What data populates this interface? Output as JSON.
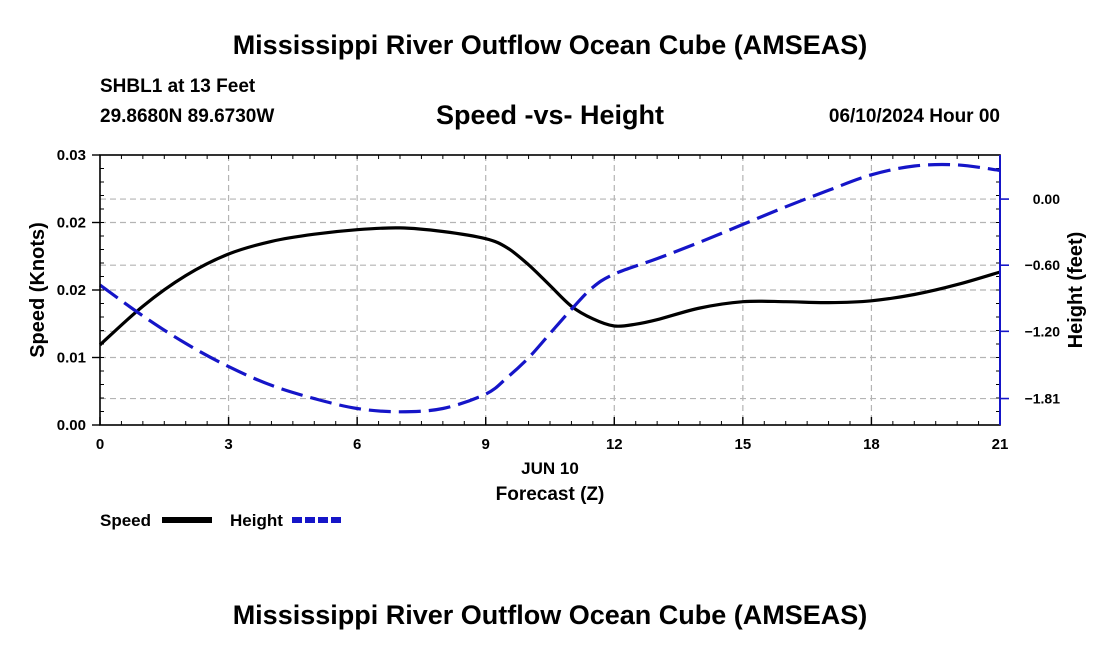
{
  "page": {
    "main_title": "Mississippi River Outflow Ocean Cube (AMSEAS)",
    "station": "SHBL1 at 13 Feet",
    "coords": "29.8680N  89.6730W",
    "chart_title": "Speed -vs- Height",
    "datetime": "06/10/2024 Hour 00",
    "footer_title": "Mississippi River Outflow Ocean Cube (AMSEAS)"
  },
  "chart_data": {
    "type": "line",
    "title": "Speed -vs- Height",
    "xlabel": "Forecast (Z)",
    "x_date_label": "JUN 10",
    "ylabel_left": "Speed (Knots)",
    "ylabel_right": "Height (feet)",
    "xlim": [
      0,
      21
    ],
    "x_ticks": [
      0,
      3,
      6,
      9,
      12,
      15,
      18,
      21
    ],
    "x_tick_labels": [
      "0",
      "3",
      "6",
      "9",
      "12",
      "15",
      "18",
      "21"
    ],
    "y_left_lim": [
      0,
      0.03
    ],
    "y_left_ticks": [
      0,
      0.0075,
      0.015,
      0.0225,
      0.03
    ],
    "y_left_tick_labels": [
      "0.00",
      "0.01",
      "0.02",
      "0.02",
      "0.03"
    ],
    "y_right_lim": [
      -2.05,
      0.4
    ],
    "y_right_ticks": [
      -1.81,
      -1.2,
      -0.6,
      0.0
    ],
    "y_right_tick_labels": [
      "−1.81",
      "−1.20",
      "−0.60",
      "0.00"
    ],
    "grid": true,
    "colors": {
      "speed": "#000000",
      "height": "#1515c8",
      "grid": "#b4b4b4"
    },
    "series": [
      {
        "name": "Speed",
        "axis": "left",
        "style": "solid",
        "x": [
          0,
          1,
          2,
          3,
          4,
          5,
          6,
          7,
          8,
          9,
          9.5,
          10,
          10.5,
          11,
          11.5,
          12,
          12.5,
          13,
          14,
          15,
          16,
          17,
          18,
          19,
          20,
          21
        ],
        "values": [
          0.0089,
          0.0132,
          0.0166,
          0.019,
          0.0204,
          0.0212,
          0.0217,
          0.0219,
          0.0215,
          0.0207,
          0.0197,
          0.0178,
          0.0155,
          0.0132,
          0.0118,
          0.011,
          0.0112,
          0.0117,
          0.013,
          0.0137,
          0.0137,
          0.0136,
          0.0138,
          0.0145,
          0.0156,
          0.017
        ]
      },
      {
        "name": "Height",
        "axis": "right",
        "style": "dashed",
        "x": [
          0,
          1,
          2,
          3,
          4,
          5,
          6,
          7,
          8,
          9,
          9.5,
          10,
          10.5,
          11,
          11.5,
          12,
          13,
          14,
          15,
          16,
          17,
          18,
          19,
          20,
          21
        ],
        "values": [
          -0.78,
          -1.06,
          -1.31,
          -1.52,
          -1.69,
          -1.81,
          -1.9,
          -1.93,
          -1.9,
          -1.77,
          -1.62,
          -1.44,
          -1.22,
          -1.0,
          -0.8,
          -0.68,
          -0.54,
          -0.39,
          -0.23,
          -0.07,
          0.08,
          0.22,
          0.3,
          0.31,
          0.26
        ]
      }
    ],
    "legend": [
      {
        "label": "Speed",
        "style": "solid"
      },
      {
        "label": "Height",
        "style": "dashed"
      }
    ],
    "legend_placement": "bottom-left"
  }
}
